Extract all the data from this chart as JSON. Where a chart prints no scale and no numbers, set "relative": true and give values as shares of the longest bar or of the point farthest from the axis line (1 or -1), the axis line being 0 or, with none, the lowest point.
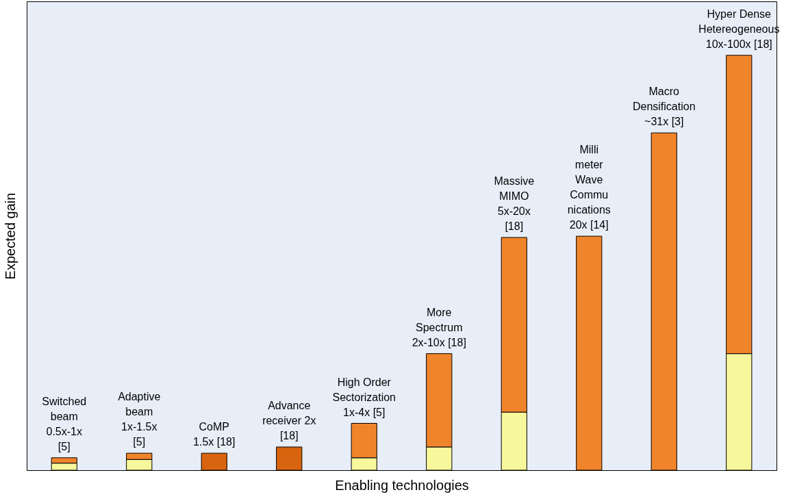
{
  "chart_data": {
    "type": "bar",
    "relative": true,
    "stacked": true,
    "xlabel": "Enabling technologies",
    "ylabel": "Expected gain",
    "categories": [
      null,
      null,
      null,
      null,
      null,
      null,
      null,
      null,
      null,
      null
    ],
    "series": [
      {
        "color": "#f7f79c",
        "values": [
          0.017,
          0.026,
          null,
          null,
          0.03,
          0.056,
          0.14,
          null,
          null,
          0.281
        ]
      },
      {
        "color": "#d9640f",
        "values": [
          null,
          null,
          0.041,
          0.056,
          null,
          null,
          null,
          null,
          null,
          null
        ]
      },
      {
        "color": "#f0842b",
        "values": [
          0.013,
          0.015,
          null,
          null,
          0.083,
          0.225,
          0.421,
          0.564,
          0.813,
          0.719
        ]
      }
    ],
    "annotations": [
      "Switched\nbeam\n0.5x-1x\n[5]",
      "Adaptive\nbeam\n1x-1.5x\n[5]",
      "CoMP\n1.5x [18]",
      "Advance\nreceiver 2x\n[18]",
      "High Order\nSectorization\n1x-4x [5]",
      "More\nSpectrum\n2x-10x [18]",
      "Massive\nMIMO\n5x-20x\n[18]",
      "Milli\nmeter\nWave\nCommu\nnications\n20x [14]",
      "Macro\nDensification\n~31x [3]",
      "Hyper Dense\nHetereogeneous\n10x-100x [18]"
    ],
    "grid": false,
    "legend": false
  }
}
